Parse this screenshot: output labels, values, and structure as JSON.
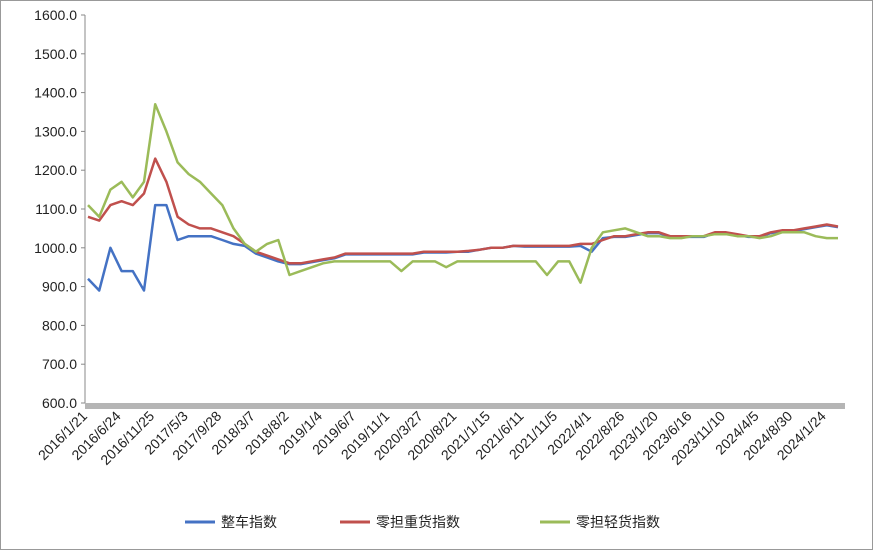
{
  "chart_data": {
    "type": "line",
    "categories": [
      "2016/1/21",
      null,
      null,
      "2016/6/24",
      null,
      null,
      "2016/11/25",
      null,
      null,
      "2017/5/3",
      null,
      null,
      "2017/9/28",
      null,
      null,
      "2018/3/7",
      null,
      null,
      "2018/8/2",
      null,
      null,
      "2019/1/4",
      null,
      null,
      "2019/6/7",
      null,
      null,
      "2019/11/1",
      null,
      null,
      "2020/3/27",
      null,
      null,
      "2020/8/21",
      null,
      null,
      "2021/1/15",
      null,
      null,
      "2021/6/11",
      null,
      null,
      "2021/11/5",
      null,
      null,
      "2022/4/1",
      null,
      null,
      "2022/8/26",
      null,
      null,
      "2023/1/20",
      null,
      null,
      "2023/6/16",
      null,
      null,
      "2023/11/10",
      null,
      null,
      "2024/4/5",
      null,
      null,
      "2024/8/30",
      null,
      null,
      "2024/1/24",
      null
    ],
    "series": [
      {
        "name": "整车指数",
        "color": "#4472c4",
        "values": [
          920,
          890,
          1000,
          940,
          940,
          890,
          1110,
          1110,
          1020,
          1030,
          1030,
          1030,
          1020,
          1010,
          1005,
          985,
          975,
          965,
          958,
          958,
          963,
          968,
          973,
          983,
          983,
          983,
          983,
          983,
          983,
          983,
          988,
          988,
          988,
          990,
          990,
          995,
          1000,
          1000,
          1005,
          1003,
          1003,
          1003,
          1003,
          1003,
          1005,
          990,
          1025,
          1028,
          1028,
          1033,
          1038,
          1038,
          1028,
          1028,
          1028,
          1028,
          1038,
          1038,
          1033,
          1028,
          1028,
          1038,
          1043,
          1043,
          1048,
          1053,
          1058,
          1053
        ]
      },
      {
        "name": "零担重货指数",
        "color": "#c0504d",
        "values": [
          1080,
          1070,
          1110,
          1120,
          1110,
          1140,
          1230,
          1170,
          1080,
          1060,
          1050,
          1050,
          1040,
          1030,
          1010,
          990,
          980,
          970,
          960,
          960,
          965,
          970,
          975,
          985,
          985,
          985,
          985,
          985,
          985,
          985,
          990,
          990,
          990,
          990,
          992,
          995,
          1000,
          1000,
          1005,
          1005,
          1005,
          1005,
          1005,
          1005,
          1010,
          1010,
          1020,
          1030,
          1030,
          1035,
          1040,
          1040,
          1030,
          1030,
          1030,
          1030,
          1040,
          1040,
          1035,
          1030,
          1030,
          1040,
          1045,
          1045,
          1050,
          1055,
          1060,
          1055
        ]
      },
      {
        "name": "零担轻货指数",
        "color": "#9bbb59",
        "values": [
          1110,
          1080,
          1150,
          1170,
          1130,
          1170,
          1370,
          1300,
          1220,
          1190,
          1170,
          1140,
          1110,
          1050,
          1010,
          990,
          1010,
          1020,
          930,
          940,
          950,
          960,
          965,
          965,
          965,
          965,
          965,
          965,
          940,
          965,
          965,
          965,
          950,
          965,
          965,
          965,
          965,
          965,
          965,
          965,
          965,
          930,
          965,
          965,
          910,
          1000,
          1040,
          1045,
          1050,
          1040,
          1030,
          1030,
          1025,
          1025,
          1030,
          1030,
          1035,
          1035,
          1030,
          1030,
          1025,
          1030,
          1040,
          1040,
          1040,
          1030,
          1025,
          1025
        ]
      }
    ],
    "ylim": [
      600,
      1600
    ],
    "yticks": [
      {
        "value": 600,
        "label": "600.0"
      },
      {
        "value": 700,
        "label": "700.0"
      },
      {
        "value": 800,
        "label": "800.0"
      },
      {
        "value": 900,
        "label": "900.0"
      },
      {
        "value": 1000,
        "label": "1000.0"
      },
      {
        "value": 1100,
        "label": "1100.0"
      },
      {
        "value": 1200,
        "label": "1200.0"
      },
      {
        "value": 1300,
        "label": "1300.0"
      },
      {
        "value": 1400,
        "label": "1400.0"
      },
      {
        "value": 1500,
        "label": "1500.0"
      },
      {
        "value": 1600,
        "label": "1600.0"
      }
    ],
    "grid": false,
    "legend": "bottom"
  }
}
